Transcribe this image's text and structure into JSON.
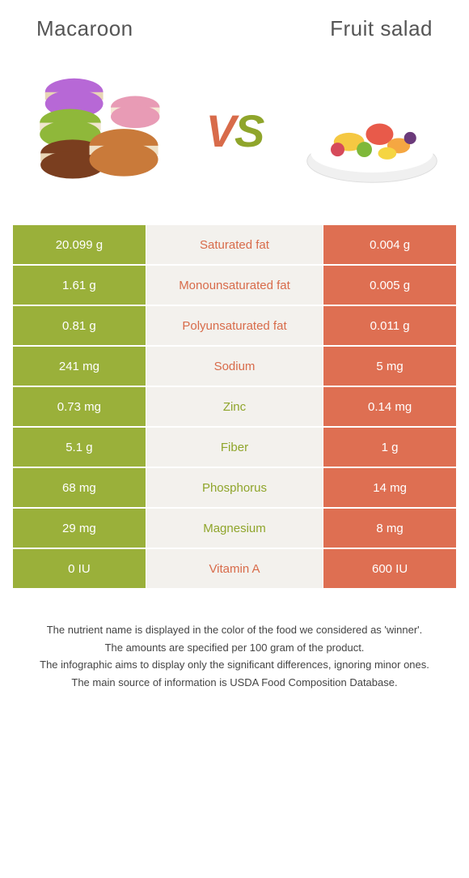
{
  "colors": {
    "left_bg": "#9ab03a",
    "right_bg": "#de6f52",
    "mid_bg": "#f3f1ed",
    "left_winner_text": "#8fa52b",
    "right_winner_text": "#d86b4a",
    "title_color": "#555555"
  },
  "left_food": {
    "title": "Macaroon"
  },
  "right_food": {
    "title": "Fruit salad"
  },
  "vs": {
    "v": "V",
    "s": "S"
  },
  "rows": [
    {
      "left": "20.099 g",
      "label": "Saturated fat",
      "right": "0.004 g",
      "winner": "right"
    },
    {
      "left": "1.61 g",
      "label": "Monounsaturated fat",
      "right": "0.005 g",
      "winner": "right"
    },
    {
      "left": "0.81 g",
      "label": "Polyunsaturated fat",
      "right": "0.011 g",
      "winner": "right"
    },
    {
      "left": "241 mg",
      "label": "Sodium",
      "right": "5 mg",
      "winner": "right"
    },
    {
      "left": "0.73 mg",
      "label": "Zinc",
      "right": "0.14 mg",
      "winner": "left"
    },
    {
      "left": "5.1 g",
      "label": "Fiber",
      "right": "1 g",
      "winner": "left"
    },
    {
      "left": "68 mg",
      "label": "Phosphorus",
      "right": "14 mg",
      "winner": "left"
    },
    {
      "left": "29 mg",
      "label": "Magnesium",
      "right": "8 mg",
      "winner": "left"
    },
    {
      "left": "0 IU",
      "label": "Vitamin A",
      "right": "600 IU",
      "winner": "right"
    }
  ],
  "footer": {
    "line1": "The nutrient name is displayed in the color of the food we considered as 'winner'.",
    "line2": "The amounts are specified per 100 gram of the product.",
    "line3": "The infographic aims to display only the significant differences, ignoring minor ones.",
    "line4": "The main source of information is USDA Food Composition Database."
  }
}
